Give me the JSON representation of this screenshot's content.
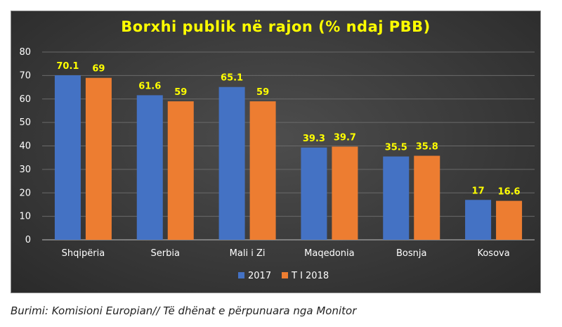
{
  "chart_data": {
    "type": "bar",
    "title": "Borxhi publik në rajon (% ndaj PBB)",
    "categories": [
      "Shqipëria",
      "Serbia",
      "Mali i Zi",
      "Maqedonia",
      "Bosnja",
      "Kosova"
    ],
    "series": [
      {
        "name": "2017",
        "color": "#4472c4",
        "values": [
          70.1,
          61.6,
          65.1,
          39.3,
          35.5,
          17
        ],
        "labels": [
          "70.1",
          "61.6",
          "65.1",
          "39.3",
          "35.5",
          "17"
        ]
      },
      {
        "name": "T I 2018",
        "color": "#ed7d31",
        "values": [
          69,
          59,
          59,
          39.7,
          35.8,
          16.6
        ],
        "labels": [
          "69",
          "59",
          "59",
          "39.7",
          "35.8",
          "16.6"
        ]
      }
    ],
    "yticks": [
      "0",
      "10",
      "20",
      "30",
      "40",
      "50",
      "60",
      "70",
      "80"
    ],
    "ylim": [
      0,
      80
    ],
    "grid": true,
    "legend_position": "bottom",
    "label_color": "#ffff00"
  },
  "caption": "Burimi: Komisioni Europian// Të dhënat e përpunuara nga Monitor"
}
